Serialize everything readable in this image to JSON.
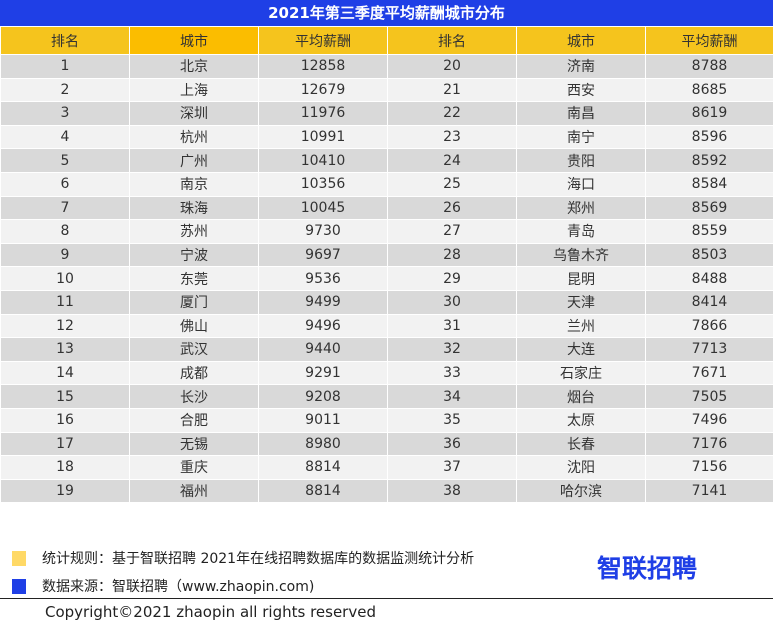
{
  "title": "2021年第三季度平均薪酬城市分布",
  "colors": {
    "title_bg": "#1f3fe6",
    "header_bg": "#f5c41d",
    "header_highlight_bg": "#fbbd00",
    "row_odd_bg": "#d9d9d9",
    "row_even_bg": "#f2f2f2",
    "legend_yellow": "#ffd966",
    "legend_blue": "#1f3fe6"
  },
  "headers": [
    "排名",
    "城市",
    "平均薪酬",
    "排名",
    "城市",
    "平均薪酬"
  ],
  "rows": [
    {
      "left": {
        "rank": "1",
        "city": "北京",
        "salary": "12858"
      },
      "right": {
        "rank": "20",
        "city": "济南",
        "salary": "8788"
      }
    },
    {
      "left": {
        "rank": "2",
        "city": "上海",
        "salary": "12679"
      },
      "right": {
        "rank": "21",
        "city": "西安",
        "salary": "8685"
      }
    },
    {
      "left": {
        "rank": "3",
        "city": "深圳",
        "salary": "11976"
      },
      "right": {
        "rank": "22",
        "city": "南昌",
        "salary": "8619"
      }
    },
    {
      "left": {
        "rank": "4",
        "city": "杭州",
        "salary": "10991"
      },
      "right": {
        "rank": "23",
        "city": "南宁",
        "salary": "8596"
      }
    },
    {
      "left": {
        "rank": "5",
        "city": "广州",
        "salary": "10410"
      },
      "right": {
        "rank": "24",
        "city": "贵阳",
        "salary": "8592"
      }
    },
    {
      "left": {
        "rank": "6",
        "city": "南京",
        "salary": "10356"
      },
      "right": {
        "rank": "25",
        "city": "海口",
        "salary": "8584"
      }
    },
    {
      "left": {
        "rank": "7",
        "city": "珠海",
        "salary": "10045"
      },
      "right": {
        "rank": "26",
        "city": "郑州",
        "salary": "8569"
      }
    },
    {
      "left": {
        "rank": "8",
        "city": "苏州",
        "salary": "9730"
      },
      "right": {
        "rank": "27",
        "city": "青岛",
        "salary": "8559"
      }
    },
    {
      "left": {
        "rank": "9",
        "city": "宁波",
        "salary": "9697"
      },
      "right": {
        "rank": "28",
        "city": "乌鲁木齐",
        "salary": "8503"
      }
    },
    {
      "left": {
        "rank": "10",
        "city": "东莞",
        "salary": "9536"
      },
      "right": {
        "rank": "29",
        "city": "昆明",
        "salary": "8488"
      }
    },
    {
      "left": {
        "rank": "11",
        "city": "厦门",
        "salary": "9499"
      },
      "right": {
        "rank": "30",
        "city": "天津",
        "salary": "8414"
      }
    },
    {
      "left": {
        "rank": "12",
        "city": "佛山",
        "salary": "9496"
      },
      "right": {
        "rank": "31",
        "city": "兰州",
        "salary": "7866"
      }
    },
    {
      "left": {
        "rank": "13",
        "city": "武汉",
        "salary": "9440"
      },
      "right": {
        "rank": "32",
        "city": "大连",
        "salary": "7713"
      }
    },
    {
      "left": {
        "rank": "14",
        "city": "成都",
        "salary": "9291"
      },
      "right": {
        "rank": "33",
        "city": "石家庄",
        "salary": "7671"
      }
    },
    {
      "left": {
        "rank": "15",
        "city": "长沙",
        "salary": "9208"
      },
      "right": {
        "rank": "34",
        "city": "烟台",
        "salary": "7505"
      }
    },
    {
      "left": {
        "rank": "16",
        "city": "合肥",
        "salary": "9011"
      },
      "right": {
        "rank": "35",
        "city": "太原",
        "salary": "7496"
      }
    },
    {
      "left": {
        "rank": "17",
        "city": "无锡",
        "salary": "8980"
      },
      "right": {
        "rank": "36",
        "city": "长春",
        "salary": "7176"
      }
    },
    {
      "left": {
        "rank": "18",
        "city": "重庆",
        "salary": "8814"
      },
      "right": {
        "rank": "37",
        "city": "沈阳",
        "salary": "7156"
      }
    },
    {
      "left": {
        "rank": "19",
        "city": "福州",
        "salary": "8814"
      },
      "right": {
        "rank": "38",
        "city": "哈尔滨",
        "salary": "7141"
      }
    }
  ],
  "footer": {
    "legend_rule": "统计规则：基于智联招聘  2021年在线招聘数据库的数据监测统计分析",
    "legend_source": "数据来源：智联招聘（www.zhaopin.com)",
    "logo": "智联招聘",
    "copyright": "Copyright©2021 zhaopin all rights reserved"
  }
}
